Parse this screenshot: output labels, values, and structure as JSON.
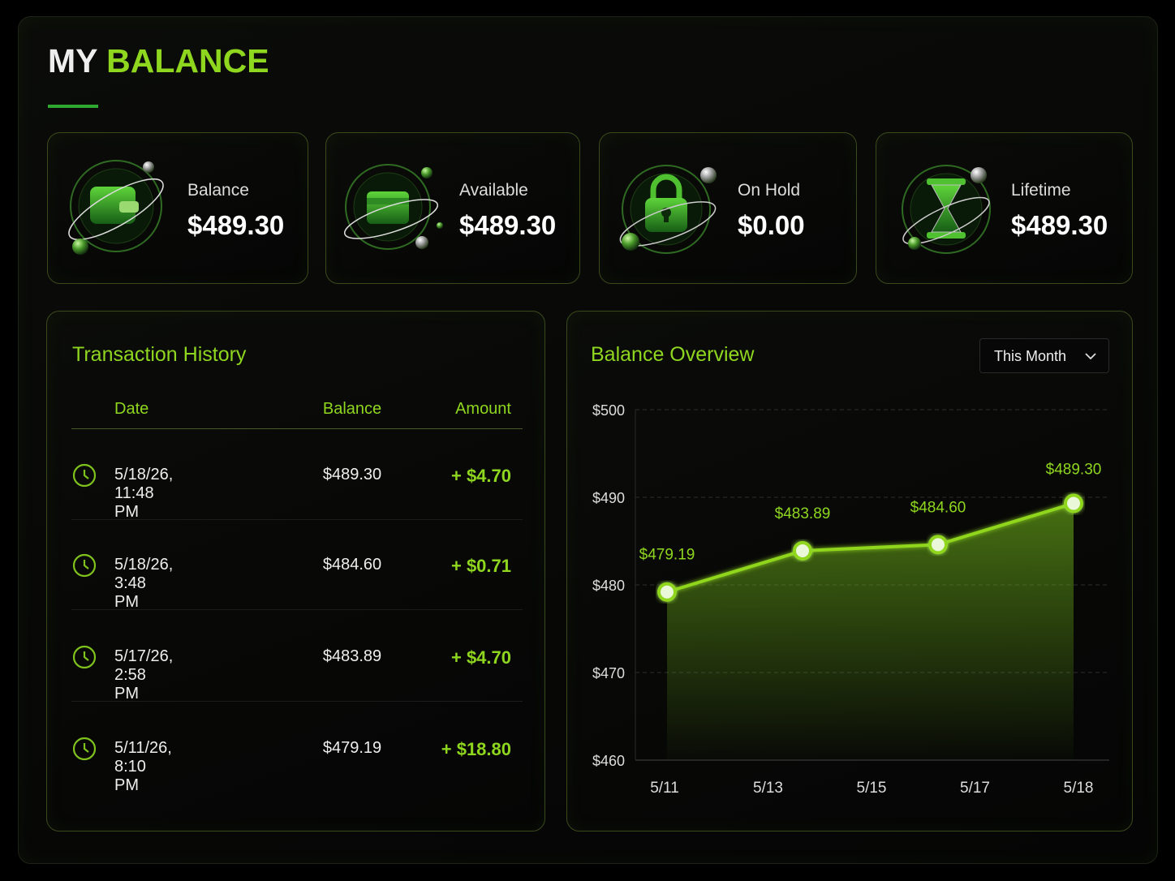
{
  "header": {
    "title_prefix": "MY",
    "title_highlight": "BALANCE"
  },
  "cards": [
    {
      "label": "Balance",
      "value": "$489.30"
    },
    {
      "label": "Available",
      "value": "$489.30"
    },
    {
      "label": "On Hold",
      "value": "$0.00"
    },
    {
      "label": "Lifetime",
      "value": "$489.30"
    }
  ],
  "transactions": {
    "title": "Transaction History",
    "columns": [
      "Date",
      "Balance",
      "Amount"
    ],
    "rows": [
      [
        "5/18/26, 11:48 PM",
        "$489.30",
        "+ $4.70"
      ],
      [
        "5/18/26, 3:48 PM",
        "$484.60",
        "+ $0.71"
      ],
      [
        "5/17/26, 2:58 PM",
        "$483.89",
        "+ $4.70"
      ],
      [
        "5/11/26, 8:10 PM",
        "$479.19",
        "+ $18.80"
      ]
    ]
  },
  "chart_data": {
    "type": "line",
    "title": "Balance Overview",
    "period": "This Month",
    "x_labels": [
      "5/11",
      "5/13",
      "5/15",
      "5/17",
      "5/18"
    ],
    "series": [
      {
        "color": "#8fd61f",
        "values": [
          479.19,
          483.89,
          484.6,
          489.3
        ],
        "value_labels": [
          "$479.19",
          "$483.89",
          "$484.60",
          "$489.30"
        ]
      }
    ],
    "ylim": [
      460,
      500
    ],
    "yticks": [
      {
        "value": 460,
        "label": "$460"
      },
      {
        "value": 470,
        "label": "$470"
      },
      {
        "value": 480,
        "label": "$480"
      },
      {
        "value": 490,
        "label": "$490"
      },
      {
        "value": 500,
        "label": "$500"
      }
    ],
    "grid": true
  }
}
